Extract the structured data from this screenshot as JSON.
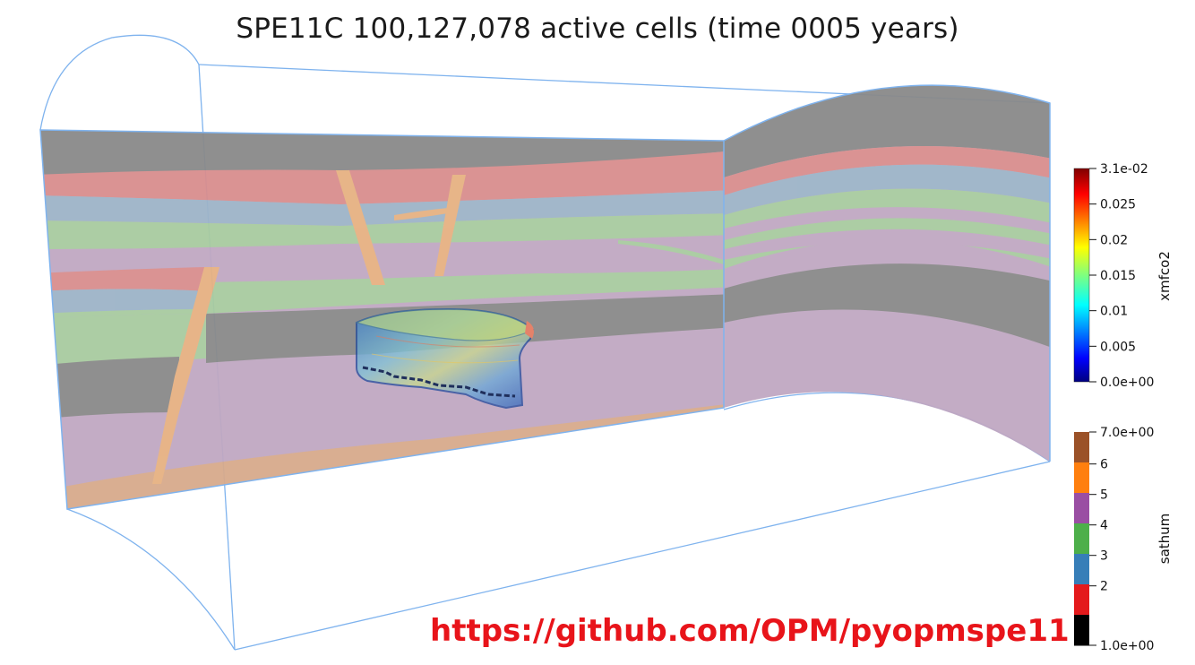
{
  "title": "SPE11C 100,127,078 active cells (time 0005 years)",
  "url": "https://github.com/OPM/pyopmspe11",
  "colorbars": {
    "xmfco2": {
      "label": "xmfco2",
      "ticks": [
        "3.1e-02",
        "0.025",
        "0.02",
        "0.015",
        "0.01",
        "0.005",
        "0.0e+00"
      ],
      "range": [
        0.0,
        0.031
      ],
      "colormap": "jet"
    },
    "sathum": {
      "label": "sathum",
      "ticks": [
        "7.0e+00",
        "6",
        "5",
        "4",
        "3",
        "2",
        "1.0e+00"
      ],
      "range": [
        1,
        7
      ],
      "colors": [
        "#9b5228",
        "#ff7f0e",
        "#9a4ea3",
        "#4daf4a",
        "#377eb8",
        "#e41a1c",
        "#000000"
      ]
    }
  },
  "layer_colors": {
    "gray": "#8a8a8a",
    "red": "#d98e8e",
    "blue": "#9db4c8",
    "green": "#a8cba0",
    "purple": "#c0a8c2",
    "tan": "#d7aa8c",
    "orange": "#e6b182"
  },
  "outline_color": "#7fb3ee",
  "url_color": "#e8141a"
}
